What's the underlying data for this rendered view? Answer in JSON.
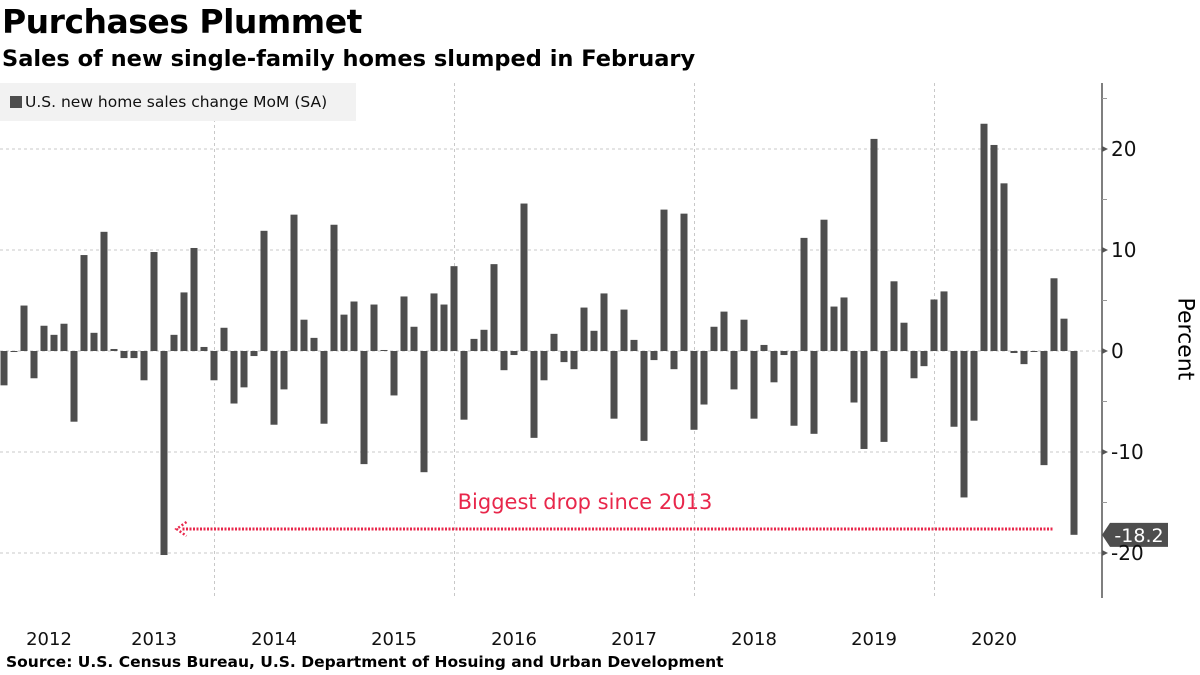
{
  "title": "Purchases Plummet",
  "subtitle": "Sales of new single-family homes slumped in February",
  "source": "Source: U.S. Census Bureau, U.S. Department of Hosuing and Urban Development",
  "colors": {
    "bar": "#4e4e4e",
    "annotation": "#e8274b",
    "grid": "#c8c8c8",
    "legend_bg": "#f2f2f2"
  },
  "chart_data": {
    "type": "bar",
    "title": "Purchases Plummet",
    "subtitle": "Sales of new single-family homes slumped in February",
    "xlabel": "",
    "ylabel": "Percent",
    "ylim": [
      -24.5,
      26.5
    ],
    "yticks": [
      20,
      10,
      0,
      -10,
      -20
    ],
    "ytick_labels": [
      "20",
      "10",
      "0",
      "-10",
      "-20"
    ],
    "grid": true,
    "legend": {
      "position": "top-left",
      "entries": [
        "U.S. new home sales change MoM (SA)"
      ]
    },
    "x_ticks": [
      {
        "label": "2012",
        "index": 4.5
      },
      {
        "label": "2013",
        "index": 15
      },
      {
        "label": "2014",
        "index": 27
      },
      {
        "label": "2015",
        "index": 39
      },
      {
        "label": "2016",
        "index": 51
      },
      {
        "label": "2017",
        "index": 63
      },
      {
        "label": "2018",
        "index": 75
      },
      {
        "label": "2019",
        "index": 87
      },
      {
        "label": "2020",
        "index": 99
      }
    ],
    "x_gridlines_index": [
      21.3,
      45.3,
      69.3,
      93.3
    ],
    "series": [
      {
        "name": "U.S. new home sales change MoM (SA)",
        "values": [
          -3.4,
          -0.1,
          4.5,
          -2.7,
          2.5,
          1.6,
          2.7,
          -7.0,
          9.5,
          1.8,
          11.8,
          0.2,
          -0.7,
          -0.7,
          -2.9,
          9.8,
          -20.2,
          1.6,
          5.8,
          10.2,
          0.4,
          -2.9,
          2.3,
          -5.2,
          -3.6,
          -0.5,
          11.9,
          -7.3,
          -3.8,
          13.5,
          3.1,
          1.3,
          -7.2,
          12.5,
          3.6,
          4.9,
          -11.2,
          4.6,
          0.1,
          -4.4,
          5.4,
          2.4,
          -12.0,
          5.7,
          4.6,
          8.4,
          -6.8,
          1.2,
          2.1,
          8.6,
          -1.9,
          -0.4,
          14.6,
          -8.6,
          -2.9,
          1.7,
          -1.1,
          -1.8,
          4.3,
          2.0,
          5.7,
          -6.7,
          4.1,
          1.1,
          -8.9,
          -0.9,
          14.0,
          -1.8,
          13.6,
          -7.8,
          -5.3,
          2.4,
          3.9,
          -3.8,
          3.1,
          -6.7,
          0.6,
          -3.1,
          -0.4,
          -7.4,
          11.2,
          -8.2,
          13.0,
          4.4,
          5.3,
          -5.1,
          -9.7,
          21.0,
          -9.0,
          6.9,
          2.8,
          -2.7,
          -1.5,
          5.1,
          5.9,
          -7.5,
          -14.5,
          -6.9,
          22.5,
          20.4,
          16.6,
          -0.2,
          -1.3,
          -0.1,
          -11.3,
          7.2,
          3.2,
          -18.2
        ]
      }
    ],
    "annotations": [
      {
        "text": "Biggest drop since 2013",
        "type": "arrow",
        "from_index": 107,
        "to_index": 17,
        "value": -17.6
      },
      {
        "text": "-18.2",
        "type": "last-value-label",
        "value": -18.2
      }
    ]
  }
}
